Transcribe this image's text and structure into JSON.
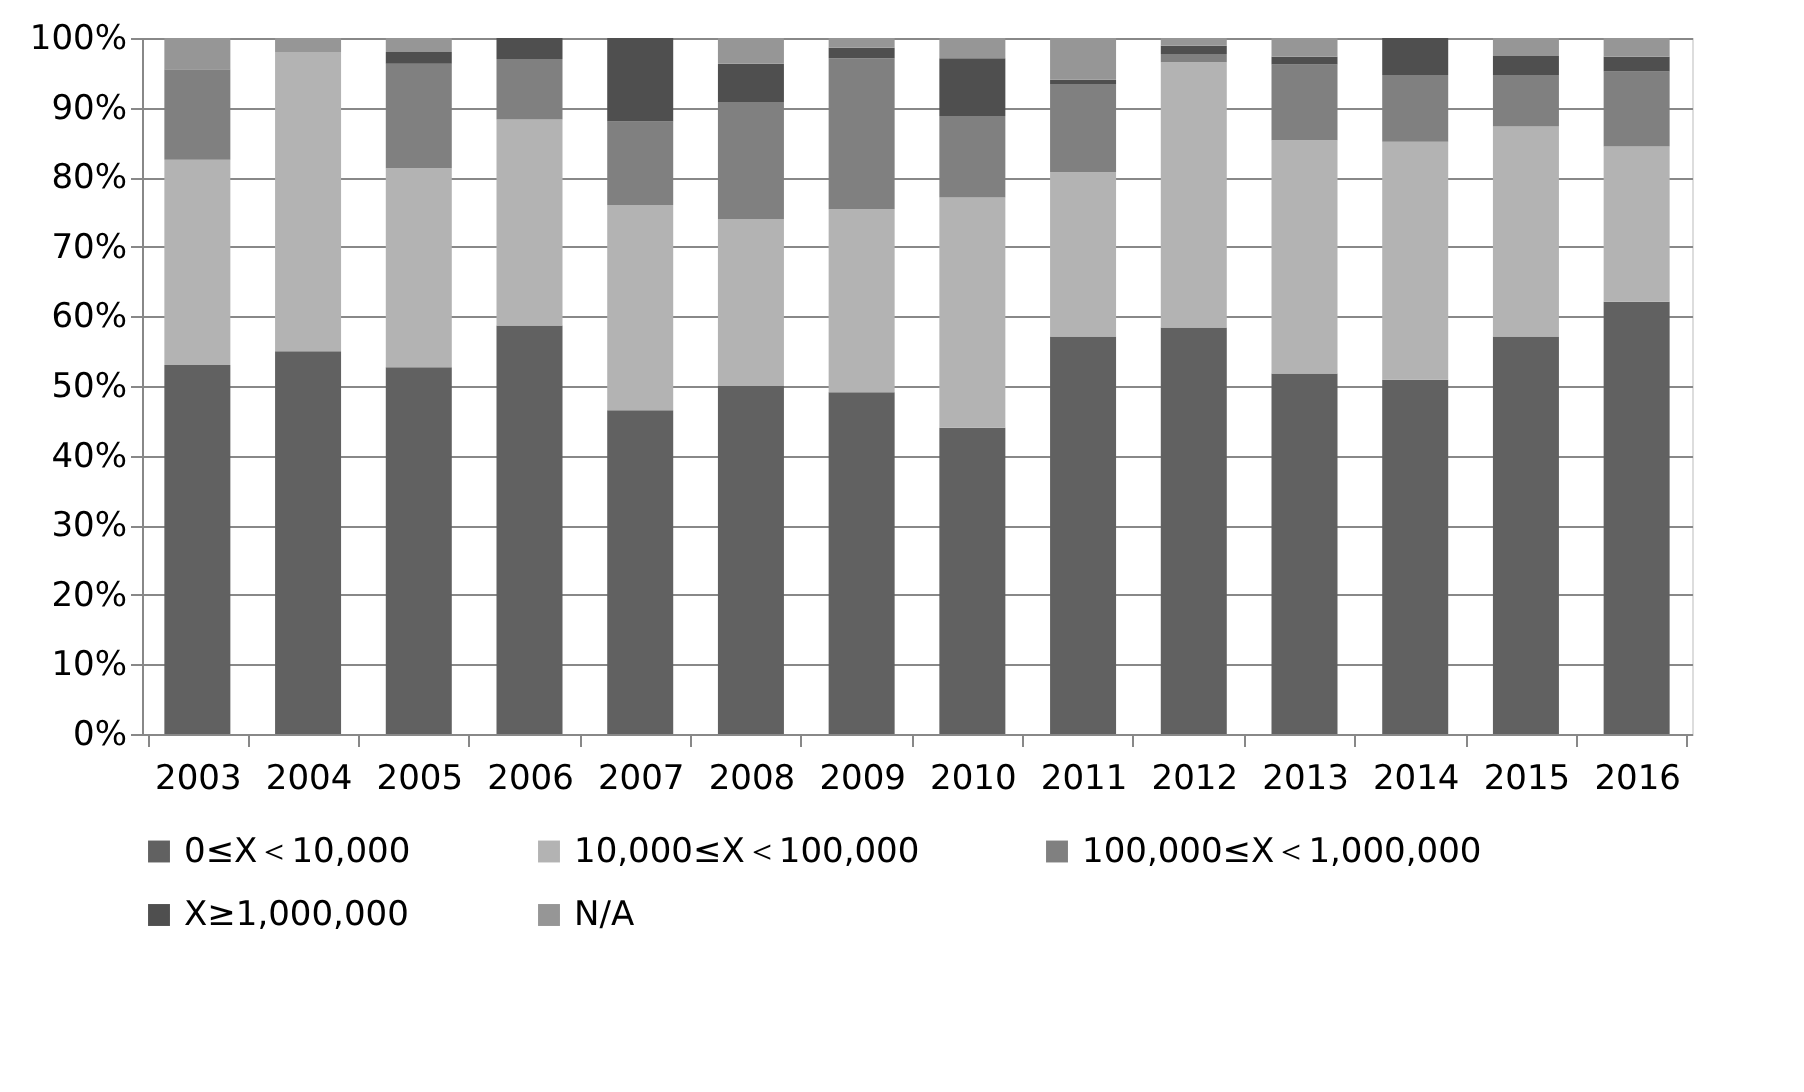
{
  "chart_data": {
    "type": "bar",
    "stacked": true,
    "categories": [
      "2003",
      "2004",
      "2005",
      "2006",
      "2007",
      "2008",
      "2009",
      "2010",
      "2011",
      "2012",
      "2013",
      "2014",
      "2015",
      "2016"
    ],
    "series": [
      {
        "name": "0≤X＜10,000",
        "color": "#616161",
        "values": [
          53,
          55,
          52.7,
          58.7,
          46.5,
          50,
          49.1,
          44,
          57.1,
          58.4,
          51.8,
          50.9,
          57.1,
          62.1
        ]
      },
      {
        "name": "10,000≤X＜100,000",
        "color": "#b3b3b3",
        "values": [
          29.5,
          43,
          28.6,
          29.6,
          29.5,
          24,
          26.3,
          33.1,
          23.6,
          38.1,
          33.5,
          34.2,
          30.2,
          22.3
        ]
      },
      {
        "name": "100,000≤X＜1,000,000",
        "color": "#808080",
        "values": [
          13,
          0,
          15,
          8.7,
          12,
          16.8,
          21.7,
          11.7,
          12.7,
          1.2,
          10.9,
          9.6,
          7.4,
          10.8
        ]
      },
      {
        "name": "X≥1,000,000",
        "color": "#4f4f4f",
        "values": [
          0,
          0,
          1.7,
          3,
          12,
          5.5,
          1.5,
          8.3,
          0.6,
          1.2,
          1.1,
          5.3,
          2.7,
          2.1
        ]
      },
      {
        "name": "N/A",
        "color": "#969696",
        "values": [
          4.5,
          2,
          2,
          0,
          0,
          3.7,
          1.4,
          2.9,
          6,
          1.1,
          2.7,
          0,
          2.6,
          2.7
        ]
      }
    ],
    "ylim": [
      0,
      100
    ],
    "yticks": [
      {
        "value": 0,
        "label": "0%"
      },
      {
        "value": 10,
        "label": "10%"
      },
      {
        "value": 20,
        "label": "20%"
      },
      {
        "value": 30,
        "label": "30%"
      },
      {
        "value": 40,
        "label": "40%"
      },
      {
        "value": 50,
        "label": "50%"
      },
      {
        "value": 60,
        "label": "60%"
      },
      {
        "value": 70,
        "label": "70%"
      },
      {
        "value": 80,
        "label": "80%"
      },
      {
        "value": 90,
        "label": "90%"
      },
      {
        "value": 100,
        "label": "100%"
      }
    ],
    "grid": "y",
    "legend": "bottom"
  }
}
